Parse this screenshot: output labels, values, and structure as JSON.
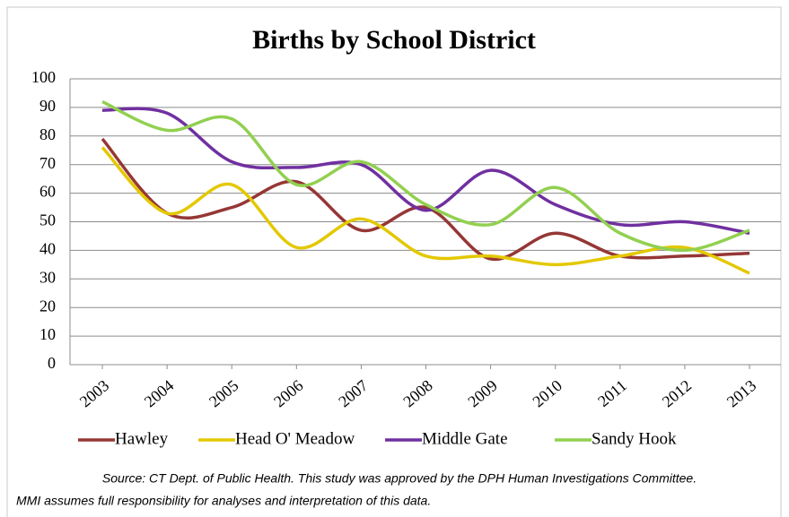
{
  "chart_data": {
    "type": "line",
    "title": "Births by School District",
    "categories": [
      "2003",
      "2004",
      "2005",
      "2006",
      "2007",
      "2008",
      "2009",
      "2010",
      "2011",
      "2012",
      "2013"
    ],
    "series": [
      {
        "name": "Hawley",
        "color": "#953735",
        "values": [
          79,
          53,
          55,
          64,
          47,
          55,
          37,
          46,
          38,
          38,
          39
        ]
      },
      {
        "name": "Head O' Meadow",
        "color": "#e3c800",
        "values": [
          76,
          53,
          63,
          41,
          51,
          38,
          38,
          35,
          38,
          41,
          32
        ]
      },
      {
        "name": "Middle Gate",
        "color": "#7030a0",
        "values": [
          89,
          88,
          71,
          69,
          70,
          54,
          68,
          56,
          49,
          50,
          46
        ]
      },
      {
        "name": "Sandy Hook",
        "color": "#92d050",
        "values": [
          92,
          82,
          86,
          63,
          71,
          56,
          49,
          62,
          46,
          40,
          47
        ]
      }
    ],
    "ylim": [
      0,
      100
    ],
    "yticks": [
      0,
      10,
      20,
      30,
      40,
      50,
      60,
      70,
      80,
      90,
      100
    ],
    "grid": true,
    "smooth": true,
    "legend": "bottom",
    "source": [
      "Source: CT Dept. of Public Health. This study was approved by the DPH Human Investigations Committee.",
      "MMI assumes full responsibility for analyses and interpretation of this data."
    ]
  }
}
